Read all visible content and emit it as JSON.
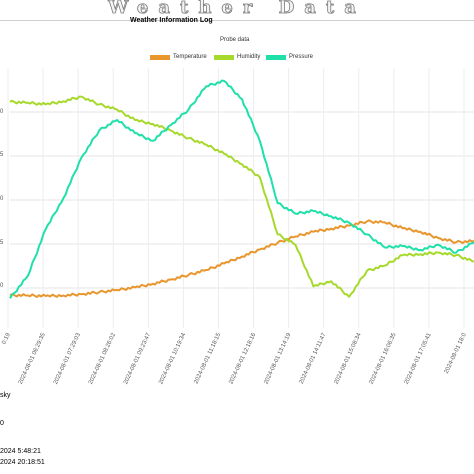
{
  "header": {
    "banner_title": "Weather Data",
    "page_title": "Weather Information Log"
  },
  "footer": {
    "line1": "sky",
    "line2": "0",
    "line3": "2024 5:48:21",
    "line4": "2024 20:18:51"
  },
  "chart_data": {
    "type": "line",
    "title": "Probe data",
    "xlabel": "",
    "ylabel": "",
    "legend_placement": "top-center",
    "grid": true,
    "x_ticks": [
      "0:19",
      "2024-08-01 06:29:35",
      "2024-08-01 07:29:03",
      "2024-08-01 08:26:02",
      "2024-08-01 09:23:47",
      "2024-08-01 10:19:34",
      "2024-08-01 11:18:15",
      "2024-08-01 12:18:16",
      "2024-08-01 13:14:19",
      "2024-08-01 14:11:47",
      "2024-08-01 15:08:34",
      "2024-08-01 16:06:35",
      "2024-08-01 17:05:41",
      "2024-08-01 18:0"
    ],
    "y_ticks": [
      "0",
      "5",
      "0",
      "5",
      "0"
    ],
    "series": [
      {
        "name": "Temperature",
        "color": "#e8962e",
        "x": [
          0,
          0.5,
          1,
          1.5,
          2,
          2.5,
          3,
          3.5,
          4,
          4.5,
          5,
          5.5,
          6,
          6.5,
          7,
          7.5,
          8,
          8.5,
          9,
          9.5,
          10,
          10.5,
          11,
          11.5,
          12,
          12.5,
          13
        ],
        "y": [
          12.6,
          12.5,
          12.3,
          12.5,
          13.0,
          13.8,
          14.6,
          15.6,
          17.0,
          18.6,
          20.4,
          22.3,
          24.8,
          27.5,
          30.2,
          32.8,
          35.2,
          37.0,
          38.2,
          39.4,
          41.0,
          40.6,
          38.4,
          37.0,
          34.6,
          33.0,
          33.4
        ]
      },
      {
        "name": "Humidity",
        "color": "#a6d92b",
        "x": [
          0,
          0.5,
          1,
          1.5,
          2,
          2.5,
          3,
          3.5,
          4,
          4.5,
          5,
          5.5,
          6,
          6.5,
          7,
          7.5,
          8,
          8.5,
          9,
          9.5,
          10,
          10.5,
          11,
          11.5,
          12,
          12.5,
          13
        ],
        "y": [
          87.0,
          86.6,
          86.0,
          87.2,
          89.0,
          86.0,
          84.0,
          80.0,
          78.5,
          76.0,
          73.0,
          70.5,
          67.0,
          63.0,
          58.0,
          36.0,
          32.0,
          16.0,
          18.0,
          12.0,
          22.0,
          24.0,
          28.0,
          28.4,
          29.0,
          28.0,
          25.5
        ]
      },
      {
        "name": "Pressure",
        "color": "#1fe0a8",
        "x": [
          0,
          0.5,
          1,
          1.5,
          2,
          2.5,
          3,
          3.5,
          4,
          4.5,
          5,
          5.5,
          6,
          6.5,
          7,
          7.5,
          8,
          8.5,
          9,
          9.5,
          10,
          10.5,
          11,
          11.5,
          12,
          12.5,
          13
        ],
        "y": [
          11.4,
          20.0,
          38.0,
          50.0,
          65.5,
          76.0,
          80.0,
          75.0,
          72.0,
          78.0,
          84.0,
          93.0,
          95.0,
          88.0,
          72.0,
          48.0,
          44.0,
          45.0,
          43.0,
          40.5,
          36.0,
          31.0,
          31.5,
          30.0,
          32.0,
          29.0,
          33.0
        ]
      }
    ]
  }
}
